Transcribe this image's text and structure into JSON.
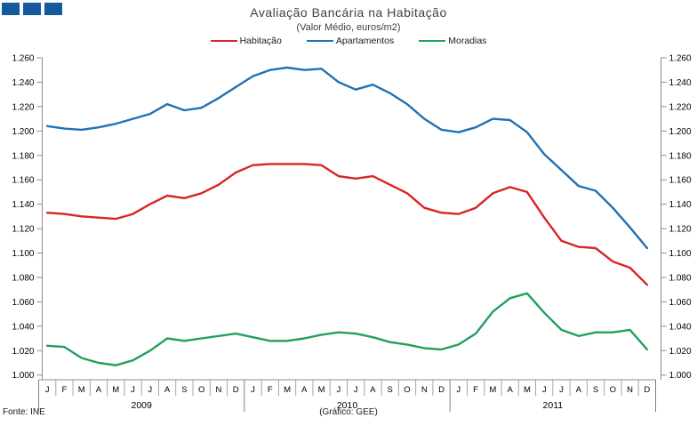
{
  "header": {
    "title": "Avaliação Bancária na Habitação",
    "subtitle": "(Valor Médio, euros/m2)"
  },
  "logo": {
    "name": "ine-logo",
    "square_color": "#15599E",
    "square_count": 3
  },
  "legend": [
    {
      "label": "Habitação",
      "color": "#D92525"
    },
    {
      "label": "Apartamentos",
      "color": "#2171B5"
    },
    {
      "label": "Moradias",
      "color": "#22A05C"
    }
  ],
  "notes": {
    "source": "Fonte: INE",
    "credit": "(Gráfico: GEE)"
  },
  "chart_data": {
    "type": "line",
    "title": "Avaliação Bancária na Habitação",
    "subtitle": "(Valor Médio, euros/m2)",
    "ylabel": "euros/m2",
    "ylim": [
      1000,
      1260
    ],
    "grid": false,
    "legend_position": "top",
    "y_tick_labels": [
      "1.000",
      "1.020",
      "1.040",
      "1.060",
      "1.080",
      "1.100",
      "1.120",
      "1.140",
      "1.160",
      "1.180",
      "1.200",
      "1.220",
      "1.240",
      "1.260"
    ],
    "month_letters": [
      "J",
      "F",
      "M",
      "A",
      "M",
      "J",
      "J",
      "A",
      "S",
      "O",
      "N",
      "D",
      "J",
      "F",
      "M",
      "A",
      "M",
      "J",
      "J",
      "A",
      "S",
      "O",
      "N",
      "D",
      "J",
      "F",
      "M",
      "A",
      "M",
      "J",
      "J",
      "A",
      "S",
      "O",
      "N",
      "D"
    ],
    "year_groups": [
      {
        "label": "2009",
        "months": 12
      },
      {
        "label": "2010",
        "months": 12
      },
      {
        "label": "2011",
        "months": 12
      }
    ],
    "series": [
      {
        "name": "Habitação",
        "color": "#D92525",
        "values": [
          1133,
          1132,
          1130,
          1129,
          1128,
          1132,
          1140,
          1147,
          1145,
          1149,
          1156,
          1166,
          1172,
          1173,
          1173,
          1173,
          1172,
          1163,
          1161,
          1163,
          1156,
          1149,
          1137,
          1133,
          1132,
          1137,
          1149,
          1154,
          1150,
          1129,
          1110,
          1105,
          1104,
          1093,
          1088,
          1074
        ]
      },
      {
        "name": "Apartamentos",
        "color": "#2171B5",
        "values": [
          1204,
          1202,
          1201,
          1203,
          1206,
          1210,
          1214,
          1222,
          1217,
          1219,
          1227,
          1236,
          1245,
          1250,
          1252,
          1250,
          1251,
          1240,
          1234,
          1238,
          1231,
          1222,
          1210,
          1201,
          1199,
          1203,
          1210,
          1209,
          1199,
          1181,
          1168,
          1155,
          1151,
          1137,
          1121,
          1104
        ]
      },
      {
        "name": "Moradias",
        "color": "#22A05C",
        "values": [
          1024,
          1023,
          1014,
          1010,
          1008,
          1012,
          1020,
          1030,
          1028,
          1030,
          1032,
          1034,
          1031,
          1028,
          1028,
          1030,
          1033,
          1035,
          1034,
          1031,
          1027,
          1025,
          1022,
          1021,
          1025,
          1034,
          1052,
          1063,
          1067,
          1051,
          1037,
          1032,
          1035,
          1035,
          1037,
          1021
        ]
      }
    ]
  }
}
